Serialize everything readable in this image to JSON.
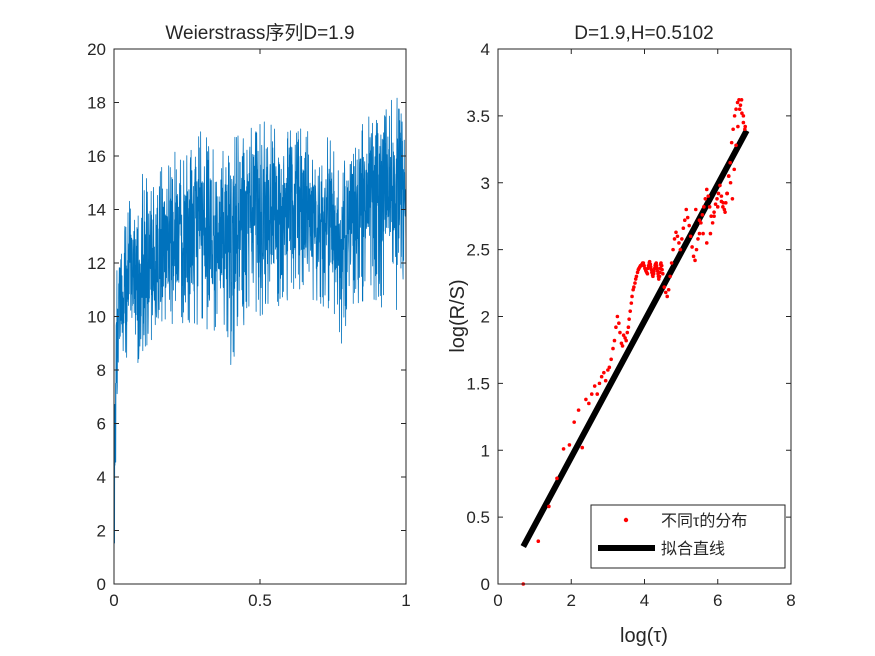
{
  "chart_data": [
    {
      "type": "line",
      "title": "Weierstrass序列D=1.9",
      "xlabel": "",
      "ylabel": "",
      "xlim": [
        0,
        1
      ],
      "ylim": [
        0,
        20
      ],
      "xticks": [
        0,
        0.5,
        1
      ],
      "xtick_labels": [
        "0",
        "0.5",
        "1"
      ],
      "yticks": [
        0,
        2,
        4,
        6,
        8,
        10,
        12,
        14,
        16,
        18,
        20
      ],
      "ytick_labels": [
        "0",
        "2",
        "4",
        "6",
        "8",
        "10",
        "12",
        "14",
        "16",
        "18",
        "20"
      ],
      "series": [
        {
          "name": "Weierstrass序列",
          "color": "#0072bd",
          "envelope_x": [
            0,
            0.003,
            0.01,
            0.02,
            0.04,
            0.06,
            0.08,
            0.1,
            0.12,
            0.15,
            0.18,
            0.2,
            0.22,
            0.25,
            0.28,
            0.3,
            0.33,
            0.36,
            0.4,
            0.45,
            0.5,
            0.55,
            0.6,
            0.65,
            0.7,
            0.75,
            0.78,
            0.8,
            0.85,
            0.9,
            0.93,
            0.95,
            0.97,
            1.0
          ],
          "envelope_min": [
            0,
            2,
            6.5,
            7.5,
            8.0,
            8.5,
            8.2,
            8.5,
            9.0,
            8.8,
            9.0,
            9.0,
            9.5,
            9.5,
            9.3,
            9.5,
            9.5,
            9.0,
            8.2,
            9.5,
            10.0,
            9.8,
            10.5,
            10.0,
            10.5,
            10.0,
            8.0,
            9.0,
            10.5,
            10.5,
            10.0,
            11.0,
            9.5,
            12.0
          ],
          "envelope_max": [
            0,
            9.5,
            12.5,
            13.0,
            13.5,
            15.0,
            14.5,
            15.5,
            15.0,
            15.5,
            15.8,
            16.5,
            16.0,
            16.5,
            16.5,
            17.0,
            16.5,
            16.5,
            16.8,
            17.0,
            17.3,
            17.5,
            17.0,
            17.3,
            17.0,
            16.5,
            15.5,
            16.5,
            17.5,
            17.8,
            18.0,
            18.2,
            18.4,
            17.5
          ],
          "envelope_mean": [
            0,
            5.5,
            9.5,
            10.5,
            11.0,
            12.0,
            11.8,
            12.0,
            12.2,
            12.3,
            12.5,
            12.8,
            13.0,
            13.0,
            13.2,
            13.5,
            13.2,
            13.0,
            12.5,
            13.5,
            13.8,
            14.0,
            14.2,
            14.0,
            14.0,
            13.5,
            12.0,
            13.5,
            14.5,
            14.8,
            15.0,
            15.0,
            15.2,
            14.5
          ]
        }
      ]
    },
    {
      "type": "scatter",
      "title": "D=1.9,H=0.5102",
      "xlabel": "log(τ)",
      "ylabel": "log(R/S)",
      "xlim": [
        0,
        8
      ],
      "ylim": [
        0,
        4
      ],
      "xticks": [
        0,
        2,
        4,
        6,
        8
      ],
      "xtick_labels": [
        "0",
        "2",
        "4",
        "6",
        "8"
      ],
      "yticks": [
        0,
        0.5,
        1,
        1.5,
        2,
        2.5,
        3,
        3.5,
        4
      ],
      "ytick_labels": [
        "0",
        "0.5",
        "1",
        "1.5",
        "2",
        "2.5",
        "3",
        "3.5",
        "4"
      ],
      "legend_position": "bottom-right",
      "series": [
        {
          "name": "不同τ的分布",
          "kind": "markers",
          "color": "#ff0000",
          "x": [
            0.69,
            1.1,
            1.39,
            1.61,
            1.79,
            1.95,
            2.08,
            2.2,
            2.3,
            2.4,
            2.48,
            2.56,
            2.64,
            2.71,
            2.77,
            2.83,
            2.89,
            2.94,
            3.0,
            3.04,
            3.09,
            3.14,
            3.18,
            3.22,
            3.26,
            3.3,
            3.33,
            3.37,
            3.4,
            3.43,
            3.47,
            3.5,
            3.53,
            3.56,
            3.58,
            3.61,
            3.64,
            3.66,
            3.69,
            3.71,
            3.74,
            3.76,
            3.78,
            3.81,
            3.83,
            3.85,
            3.87,
            3.89,
            3.91,
            3.93,
            3.95,
            3.97,
            3.99,
            4.01,
            4.03,
            4.04,
            4.06,
            4.08,
            4.1,
            4.11,
            4.13,
            4.14,
            4.16,
            4.17,
            4.19,
            4.2,
            4.22,
            4.23,
            4.25,
            4.26,
            4.28,
            4.29,
            4.3,
            4.32,
            4.33,
            4.34,
            4.36,
            4.37,
            4.38,
            4.39,
            4.41,
            4.42,
            4.43,
            4.44,
            4.45,
            4.47,
            4.48,
            4.5,
            4.54,
            4.58,
            4.62,
            4.66,
            4.7,
            4.74,
            4.78,
            4.82,
            4.86,
            4.9,
            4.94,
            4.98,
            5.02,
            5.06,
            5.1,
            5.14,
            5.18,
            5.22,
            5.26,
            5.3,
            5.34,
            5.38,
            5.42,
            5.46,
            5.5,
            5.54,
            5.58,
            5.62,
            5.66,
            5.7,
            5.74,
            5.78,
            5.82,
            5.86,
            5.9,
            5.94,
            5.98,
            6.02,
            6.06,
            6.1,
            6.14,
            6.18,
            6.22,
            6.26,
            6.3,
            6.34,
            6.38,
            6.42,
            6.46,
            6.5,
            6.54,
            6.58,
            6.62,
            6.66,
            6.7,
            6.74
          ],
          "y": [
            0.0,
            0.32,
            0.58,
            0.79,
            1.01,
            1.04,
            1.21,
            1.3,
            1.02,
            1.38,
            1.35,
            1.42,
            1.48,
            1.42,
            1.5,
            1.55,
            1.58,
            1.52,
            1.6,
            1.62,
            1.68,
            1.76,
            1.82,
            1.92,
            2.0,
            1.95,
            1.88,
            1.8,
            1.78,
            1.86,
            1.84,
            1.82,
            1.88,
            1.92,
            1.98,
            2.04,
            2.1,
            2.15,
            2.2,
            2.22,
            2.25,
            2.28,
            2.3,
            2.33,
            2.35,
            2.36,
            2.37,
            2.38,
            2.38,
            2.39,
            2.4,
            2.4,
            2.38,
            2.36,
            2.35,
            2.34,
            2.33,
            2.32,
            2.36,
            2.38,
            2.4,
            2.41,
            2.39,
            2.37,
            2.35,
            2.33,
            2.31,
            2.3,
            2.32,
            2.34,
            2.36,
            2.38,
            2.39,
            2.4,
            2.38,
            2.36,
            2.34,
            2.32,
            2.3,
            2.28,
            2.3,
            2.33,
            2.36,
            2.39,
            2.4,
            2.38,
            2.35,
            2.32,
            2.22,
            2.18,
            2.15,
            2.2,
            2.3,
            2.4,
            2.5,
            2.58,
            2.63,
            2.6,
            2.55,
            2.5,
            2.58,
            2.66,
            2.72,
            2.8,
            2.74,
            2.68,
            2.6,
            2.52,
            2.45,
            2.42,
            2.5,
            2.58,
            2.62,
            2.7,
            2.76,
            2.82,
            2.88,
            2.95,
            2.9,
            2.82,
            2.75,
            2.7,
            2.78,
            2.84,
            2.88,
            2.92,
            2.98,
            2.86,
            2.82,
            2.8,
            2.85,
            2.92,
            3.05,
            3.15,
            3.3,
            3.4,
            3.5,
            3.55,
            3.6,
            3.62,
            3.58,
            3.52,
            3.45,
            3.4
          ],
          "x_trace": [
            5.4,
            5.5,
            5.6,
            5.7,
            5.8,
            5.9,
            6.0,
            6.1,
            6.15,
            6.2,
            6.25,
            6.3,
            6.35,
            6.4,
            6.45,
            6.5,
            6.55,
            6.6,
            6.65,
            6.7,
            6.75
          ],
          "y_trace": [
            2.8,
            2.72,
            2.62,
            2.55,
            2.62,
            2.75,
            2.82,
            2.9,
            2.85,
            2.78,
            2.92,
            3.05,
            3.0,
            2.88,
            3.1,
            3.28,
            3.42,
            3.55,
            3.62,
            3.5,
            3.42
          ]
        },
        {
          "name": "拟合直线",
          "kind": "line",
          "color": "#000000",
          "x": [
            0.69,
            6.79
          ],
          "y": [
            0.28,
            3.39
          ]
        }
      ]
    }
  ]
}
